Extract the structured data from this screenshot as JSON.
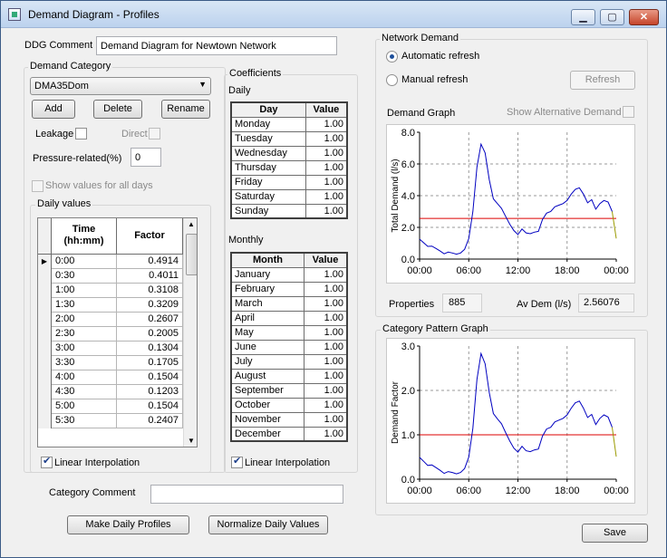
{
  "window": {
    "title": "Demand Diagram - Profiles",
    "minimize": "▁",
    "maximize": "▢",
    "close": "✕"
  },
  "ddg": {
    "label": "DDG Comment",
    "value": "Demand Diagram for Newtown Network"
  },
  "demand_category": {
    "label": "Demand Category",
    "selected": "DMA35Dom",
    "add": "Add",
    "delete": "Delete",
    "rename": "Rename",
    "leakage": "Leakage",
    "direct": "Direct",
    "pressure_label": "Pressure-related(%)",
    "pressure_value": "0",
    "show_all": "Show values for all days"
  },
  "daily_values": {
    "label": "Daily values",
    "col_time": "Time (hh:mm)",
    "col_factor": "Factor",
    "rows": [
      {
        "time": "0:00",
        "factor": "0.4914"
      },
      {
        "time": "0:30",
        "factor": "0.4011"
      },
      {
        "time": "1:00",
        "factor": "0.3108"
      },
      {
        "time": "1:30",
        "factor": "0.3209"
      },
      {
        "time": "2:00",
        "factor": "0.2607"
      },
      {
        "time": "2:30",
        "factor": "0.2005"
      },
      {
        "time": "3:00",
        "factor": "0.1304"
      },
      {
        "time": "3:30",
        "factor": "0.1705"
      },
      {
        "time": "4:00",
        "factor": "0.1504"
      },
      {
        "time": "4:30",
        "factor": "0.1203"
      },
      {
        "time": "5:00",
        "factor": "0.1504"
      },
      {
        "time": "5:30",
        "factor": "0.2407"
      }
    ],
    "linear": "Linear Interpolation"
  },
  "coefficients": {
    "label": "Coefficients",
    "daily_label": "Daily",
    "col_day": "Day",
    "col_value": "Value",
    "daily": [
      {
        "name": "Monday",
        "value": "1.00"
      },
      {
        "name": "Tuesday",
        "value": "1.00"
      },
      {
        "name": "Wednesday",
        "value": "1.00"
      },
      {
        "name": "Thursday",
        "value": "1.00"
      },
      {
        "name": "Friday",
        "value": "1.00"
      },
      {
        "name": "Saturday",
        "value": "1.00"
      },
      {
        "name": "Sunday",
        "value": "1.00"
      }
    ],
    "monthly_label": "Monthly",
    "col_month": "Month",
    "monthly": [
      {
        "name": "January",
        "value": "1.00"
      },
      {
        "name": "February",
        "value": "1.00"
      },
      {
        "name": "March",
        "value": "1.00"
      },
      {
        "name": "April",
        "value": "1.00"
      },
      {
        "name": "May",
        "value": "1.00"
      },
      {
        "name": "June",
        "value": "1.00"
      },
      {
        "name": "July",
        "value": "1.00"
      },
      {
        "name": "August",
        "value": "1.00"
      },
      {
        "name": "September",
        "value": "1.00"
      },
      {
        "name": "October",
        "value": "1.00"
      },
      {
        "name": "November",
        "value": "1.00"
      },
      {
        "name": "December",
        "value": "1.00"
      }
    ],
    "linear": "Linear Interpolation"
  },
  "category_comment": {
    "label": "Category Comment",
    "value": ""
  },
  "buttons": {
    "make_daily": "Make Daily Profiles",
    "normalize": "Normalize Daily Values",
    "save": "Save"
  },
  "network_demand": {
    "label": "Network Demand",
    "auto": "Automatic refresh",
    "manual": "Manual refresh",
    "refresh": "Refresh",
    "graph_label": "Demand Graph",
    "show_alt": "Show Alternative Demand",
    "properties_label": "Properties",
    "properties_value": "885",
    "avdem_label": "Av Dem (l/s)",
    "avdem_value": "2.56076"
  },
  "category_pattern": {
    "label": "Category Pattern Graph"
  },
  "colors": {
    "line": "#0000c0",
    "reference": "#dd0000",
    "tail": "#9a9a00",
    "grid": "#9a9a9a"
  },
  "chart_data": [
    {
      "type": "line",
      "title": "",
      "xlabel": "",
      "ylabel": "Total Demand (l/s)",
      "x_ticks": [
        "00:00",
        "06:00",
        "12:00",
        "18:00",
        "00:00"
      ],
      "y_ticks": [
        "0.0",
        "2.0",
        "4.0",
        "6.0",
        "8.0"
      ],
      "xlim": [
        0,
        24
      ],
      "ylim": [
        0,
        8
      ],
      "grid": true,
      "reference_line": 2.56076,
      "x": [
        0,
        0.5,
        1,
        1.5,
        2,
        2.5,
        3,
        3.5,
        4,
        4.5,
        5,
        5.5,
        6,
        6.5,
        7,
        7.5,
        8,
        8.5,
        9,
        9.5,
        10,
        10.5,
        11,
        11.5,
        12,
        12.5,
        13,
        13.5,
        14,
        14.5,
        15,
        15.5,
        16,
        16.5,
        17,
        17.5,
        18,
        18.5,
        19,
        19.5,
        20,
        20.5,
        21,
        21.5,
        22,
        22.5,
        23,
        23.5,
        24
      ],
      "values": [
        1.26,
        1.03,
        0.8,
        0.82,
        0.67,
        0.51,
        0.33,
        0.44,
        0.38,
        0.31,
        0.38,
        0.62,
        1.3,
        3.0,
        5.8,
        7.25,
        6.7,
        5.0,
        3.8,
        3.5,
        3.2,
        2.7,
        2.2,
        1.8,
        1.55,
        1.9,
        1.65,
        1.6,
        1.7,
        1.75,
        2.5,
        2.9,
        3.0,
        3.3,
        3.4,
        3.5,
        3.7,
        4.1,
        4.4,
        4.5,
        4.1,
        3.55,
        3.75,
        3.15,
        3.5,
        3.7,
        3.6,
        3.0,
        1.3
      ]
    },
    {
      "type": "line",
      "title": "",
      "xlabel": "",
      "ylabel": "Demand Factor",
      "x_ticks": [
        "00:00",
        "06:00",
        "12:00",
        "18:00",
        "00:00"
      ],
      "y_ticks": [
        "0.0",
        "1.0",
        "2.0",
        "3.0"
      ],
      "xlim": [
        0,
        24
      ],
      "ylim": [
        0,
        3
      ],
      "grid": true,
      "reference_line": 1.0,
      "x": [
        0,
        0.5,
        1,
        1.5,
        2,
        2.5,
        3,
        3.5,
        4,
        4.5,
        5,
        5.5,
        6,
        6.5,
        7,
        7.5,
        8,
        8.5,
        9,
        9.5,
        10,
        10.5,
        11,
        11.5,
        12,
        12.5,
        13,
        13.5,
        14,
        14.5,
        15,
        15.5,
        16,
        16.5,
        17,
        17.5,
        18,
        18.5,
        19,
        19.5,
        20,
        20.5,
        21,
        21.5,
        22,
        22.5,
        23,
        23.5,
        24
      ],
      "values": [
        0.4914,
        0.4011,
        0.3108,
        0.3209,
        0.2607,
        0.2005,
        0.1304,
        0.1705,
        0.1504,
        0.1203,
        0.1504,
        0.2407,
        0.5,
        1.15,
        2.25,
        2.83,
        2.6,
        1.95,
        1.48,
        1.36,
        1.25,
        1.05,
        0.86,
        0.7,
        0.61,
        0.74,
        0.64,
        0.62,
        0.66,
        0.68,
        0.97,
        1.13,
        1.17,
        1.29,
        1.33,
        1.37,
        1.45,
        1.6,
        1.72,
        1.76,
        1.6,
        1.39,
        1.46,
        1.23,
        1.37,
        1.45,
        1.4,
        1.17,
        0.51
      ]
    }
  ]
}
